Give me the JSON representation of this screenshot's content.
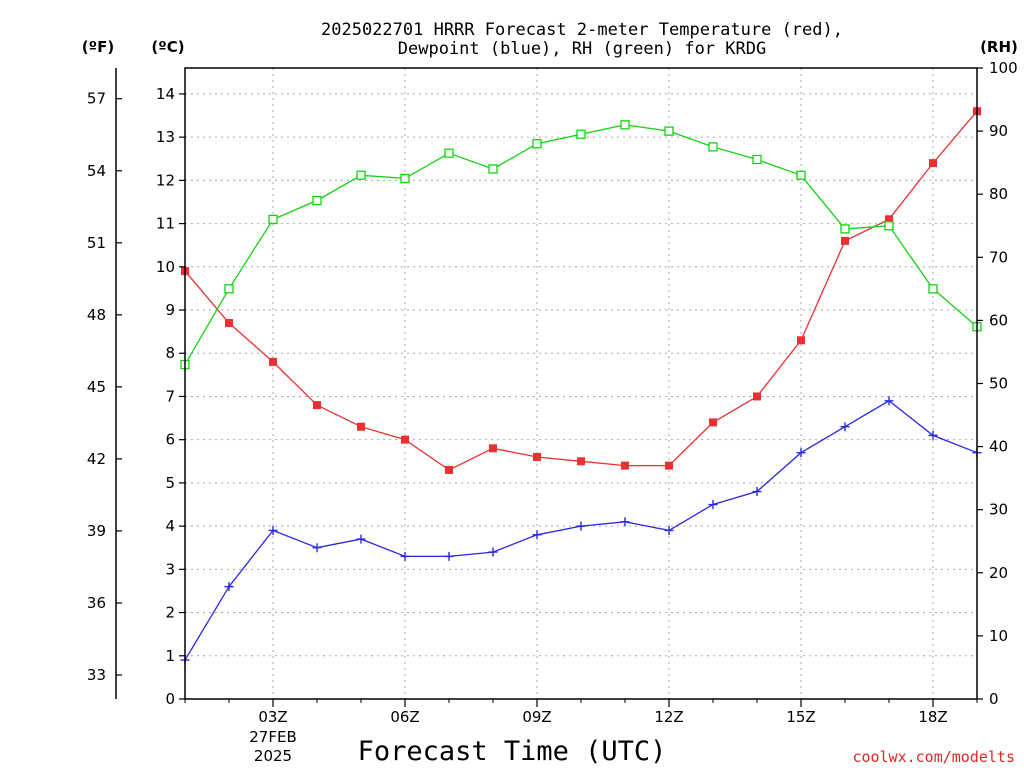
{
  "chart_data": {
    "type": "line",
    "title": [
      "2025022701 HRRR Forecast 2-meter Temperature (red),",
      "Dewpoint (blue), RH (green) for KRDG"
    ],
    "xlabel": "Forecast Time (UTC)",
    "units": {
      "fahrenheit": "(ºF)",
      "celsius": "(ºC)",
      "rh": "(RH)"
    },
    "x": [
      1,
      2,
      3,
      4,
      5,
      6,
      7,
      8,
      9,
      10,
      11,
      12,
      13,
      14,
      15,
      16,
      17,
      18,
      19
    ],
    "x_ticks": [
      {
        "x": 3,
        "label": "03Z",
        "sub": [
          "27FEB",
          "2025"
        ]
      },
      {
        "x": 6,
        "label": "06Z"
      },
      {
        "x": 9,
        "label": "09Z"
      },
      {
        "x": 12,
        "label": "12Z"
      },
      {
        "x": 15,
        "label": "15Z"
      },
      {
        "x": 18,
        "label": "18Z"
      }
    ],
    "xlim": [
      1,
      19
    ],
    "ylim_celsius": [
      0,
      14.6
    ],
    "ylim_rh": [
      0,
      100
    ],
    "yticks_celsius": [
      0,
      1,
      2,
      3,
      4,
      5,
      6,
      7,
      8,
      9,
      10,
      11,
      12,
      13,
      14
    ],
    "yticks_fahrenheit": [
      33,
      36,
      39,
      42,
      45,
      48,
      51,
      54,
      57
    ],
    "yticks_rh": [
      0,
      10,
      20,
      30,
      40,
      50,
      60,
      70,
      80,
      90,
      100
    ],
    "grid": true,
    "series": [
      {
        "name": "Temperature",
        "axis": "celsius",
        "color": "#e83232",
        "marker": "filled-square",
        "values": [
          9.9,
          8.7,
          7.8,
          6.8,
          6.3,
          6.0,
          5.3,
          5.8,
          5.6,
          5.5,
          5.4,
          5.4,
          6.4,
          7.0,
          8.3,
          10.6,
          11.1,
          12.4,
          13.6
        ]
      },
      {
        "name": "Dewpoint",
        "axis": "celsius",
        "color": "#2828e0",
        "marker": "plus",
        "values": [
          0.9,
          2.6,
          3.9,
          3.5,
          3.7,
          3.3,
          3.3,
          3.4,
          3.8,
          4.0,
          4.1,
          3.9,
          4.5,
          4.8,
          5.7,
          6.3,
          6.9,
          6.1,
          5.7
        ]
      },
      {
        "name": "RH",
        "axis": "rh",
        "color": "#14d214",
        "marker": "open-square",
        "values": [
          53,
          65,
          76,
          79,
          83,
          82.5,
          86.5,
          84,
          88,
          89.5,
          91,
          90,
          87.5,
          85.5,
          83,
          74.5,
          75,
          65,
          59
        ]
      }
    ]
  },
  "credit": "coolwx.com/modelts"
}
